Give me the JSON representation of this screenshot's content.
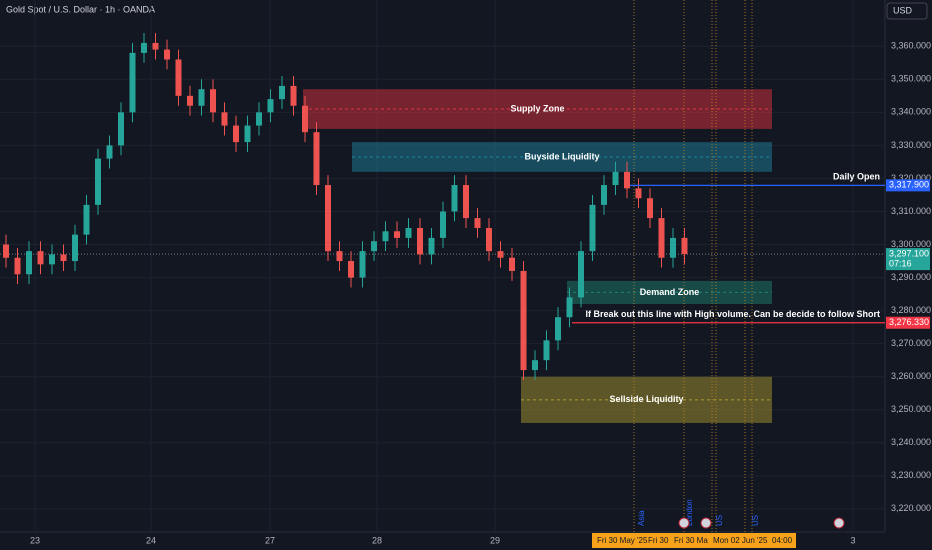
{
  "chart_data": {
    "type": "candlestick",
    "title": "Gold Spot / U.S. Dollar · 1h · OANDA",
    "currency": "USD",
    "up_color": "#26a69a",
    "down_color": "#ef5350",
    "open": [
      3300,
      3296,
      3291,
      3298,
      3294,
      3297,
      3295,
      3303,
      3312,
      3326,
      3330,
      3340,
      3358,
      3361,
      3359,
      3356,
      3345,
      3342,
      3347,
      3340,
      3336,
      3331,
      3336,
      3340,
      3344,
      3348,
      3342,
      3334,
      3318,
      3298,
      3295,
      3290,
      3298,
      3301,
      3304,
      3302,
      3305,
      3297,
      3302,
      3310,
      3318,
      3308,
      3305,
      3298,
      3296,
      3292,
      3262,
      3265,
      3271,
      3278,
      3284,
      3298,
      3312,
      3318,
      3322,
      3317,
      3314,
      3308,
      3296,
      3302
    ],
    "high": [
      3303,
      3299,
      3301,
      3301,
      3300,
      3300,
      3306,
      3315,
      3329,
      3333,
      3343,
      3361,
      3364,
      3364,
      3362,
      3359,
      3348,
      3350,
      3350,
      3343,
      3339,
      3339,
      3343,
      3347,
      3351,
      3351,
      3345,
      3337,
      3321,
      3301,
      3298,
      3301,
      3304,
      3307,
      3307,
      3308,
      3308,
      3305,
      3313,
      3321,
      3321,
      3311,
      3308,
      3301,
      3299,
      3295,
      3268,
      3274,
      3281,
      3287,
      3301,
      3315,
      3321,
      3325,
      3325,
      3320,
      3317,
      3311,
      3305,
      3305
    ],
    "low": [
      3293,
      3288,
      3288,
      3291,
      3291,
      3292,
      3292,
      3300,
      3309,
      3323,
      3327,
      3337,
      3355,
      3356,
      3353,
      3342,
      3339,
      3339,
      3337,
      3333,
      3328,
      3328,
      3333,
      3337,
      3341,
      3339,
      3331,
      3315,
      3295,
      3292,
      3287,
      3287,
      3295,
      3298,
      3299,
      3299,
      3294,
      3294,
      3299,
      3307,
      3305,
      3302,
      3295,
      3293,
      3289,
      3259,
      3259,
      3262,
      3268,
      3275,
      3281,
      3295,
      3309,
      3315,
      3314,
      3311,
      3305,
      3293,
      3293,
      3294
    ],
    "close": [
      3296,
      3291,
      3298,
      3294,
      3297,
      3295,
      3303,
      3312,
      3326,
      3330,
      3340,
      3358,
      3361,
      3359,
      3356,
      3345,
      3342,
      3347,
      3340,
      3336,
      3331,
      3336,
      3340,
      3344,
      3348,
      3342,
      3334,
      3318,
      3298,
      3295,
      3290,
      3298,
      3301,
      3304,
      3302,
      3305,
      3297,
      3302,
      3310,
      3318,
      3308,
      3305,
      3298,
      3296,
      3292,
      3262,
      3265,
      3271,
      3278,
      3284,
      3298,
      3312,
      3318,
      3322,
      3317,
      3314,
      3308,
      3296,
      3302,
      3297.1
    ],
    "ylim": [
      3213,
      3374
    ],
    "yticks": [
      {
        "value": 3220,
        "label": "3,220.000"
      },
      {
        "value": 3230,
        "label": "3,230.000"
      },
      {
        "value": 3240,
        "label": "3,240.000"
      },
      {
        "value": 3250,
        "label": "3,250.000"
      },
      {
        "value": 3260,
        "label": "3,260.000"
      },
      {
        "value": 3270,
        "label": "3,270.000"
      },
      {
        "value": 3280,
        "label": "3,280.000"
      },
      {
        "value": 3290,
        "label": "3,290.000"
      },
      {
        "value": 3300,
        "label": "3,300.000"
      },
      {
        "value": 3310,
        "label": "3,310.000"
      },
      {
        "value": 3320,
        "label": "3,320.000"
      },
      {
        "value": 3330,
        "label": "3,330.000"
      },
      {
        "value": 3340,
        "label": "3,340.000"
      },
      {
        "value": 3350,
        "label": "3,350.000"
      },
      {
        "value": 3360,
        "label": "3,360.000"
      }
    ],
    "time_labels": [
      "23",
      "24",
      "27",
      "28",
      "29",
      "3"
    ],
    "zones": [
      {
        "name": "Supply Zone",
        "top": 3347,
        "bottom": 3335,
        "color": "#f23645"
      },
      {
        "name": "Buyside Liquidity",
        "top": 3331,
        "bottom": 3322,
        "color": "#1e8ba8"
      },
      {
        "name": "Demand Zone",
        "top": 3289,
        "bottom": 3282,
        "color": "#1f8a78"
      },
      {
        "name": "Sellside Liquidity",
        "top": 3260,
        "bottom": 3246,
        "color": "#b5a531"
      }
    ],
    "levels": [
      {
        "name": "Daily Open",
        "value": 3317.9,
        "label": "3,317.900",
        "color": "#2962ff"
      },
      {
        "name": "If Break out this line with High volume. Can be decide to follow Short",
        "value": 3276.33,
        "label": "3,276.330",
        "color": "#f23645"
      }
    ],
    "last_price": {
      "value": 3297.1,
      "label": "3,297.100",
      "countdown": "07:16"
    },
    "sessions": [
      "Asia",
      "London",
      "US",
      "US"
    ],
    "time_cursor": [
      "Fri 30 May '25",
      "Fri 30",
      "Fri 30 Ma",
      "Mon 02 Jun '25",
      "04:00"
    ]
  }
}
